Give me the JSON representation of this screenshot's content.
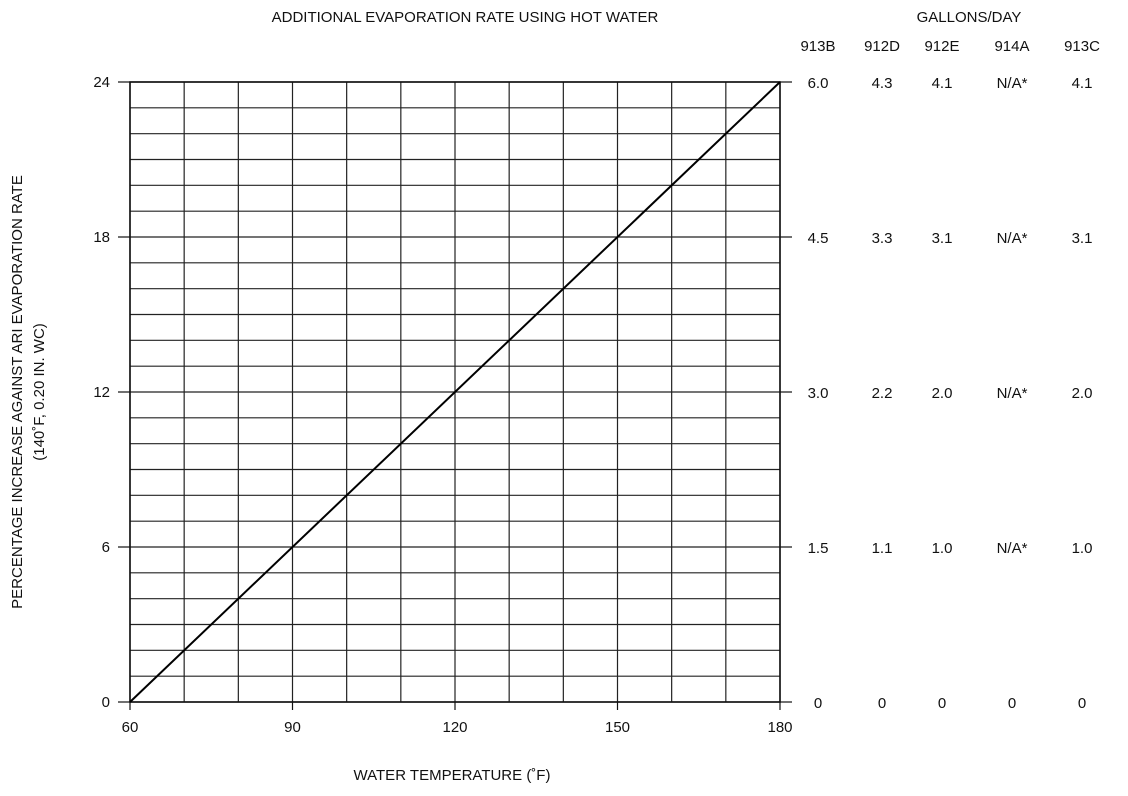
{
  "chart_data": {
    "type": "line",
    "title": "ADDITIONAL EVAPORATION RATE USING HOT WATER",
    "xlabel": "WATER TEMPERATURE (˚F)",
    "ylabel_line1": "PERCENTAGE INCREASE AGAINST ARI EVAPORATION RATE",
    "ylabel_line2": "(140˚F, 0.20 IN. WC)",
    "xlim": [
      60,
      180
    ],
    "ylim": [
      0,
      24
    ],
    "x_ticks": [
      60,
      90,
      120,
      150,
      180
    ],
    "y_ticks": [
      0,
      6,
      12,
      18,
      24
    ],
    "grid": true,
    "series": [
      {
        "x": [
          60,
          180
        ],
        "y": [
          0,
          24
        ]
      }
    ],
    "right_axis": {
      "title": "GALLONS/DAY",
      "columns": [
        "913B",
        "912D",
        "912E",
        "914A",
        "913C"
      ],
      "rows": [
        {
          "y": 24,
          "values": [
            "6.0",
            "4.3",
            "4.1",
            "N/A*",
            "4.1"
          ]
        },
        {
          "y": 18,
          "values": [
            "4.5",
            "3.3",
            "3.1",
            "N/A*",
            "3.1"
          ]
        },
        {
          "y": 12,
          "values": [
            "3.0",
            "2.2",
            "2.0",
            "N/A*",
            "2.0"
          ]
        },
        {
          "y": 6,
          "values": [
            "1.5",
            "1.1",
            "1.0",
            "N/A*",
            "1.0"
          ]
        },
        {
          "y": 0,
          "values": [
            "0",
            "0",
            "0",
            "0",
            "0"
          ]
        }
      ]
    }
  }
}
